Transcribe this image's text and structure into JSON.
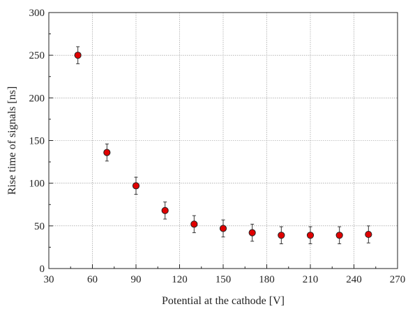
{
  "chart_data": {
    "type": "scatter",
    "xlabel": "Potential at the cathode [V]",
    "ylabel": "Rise time of signals [ns]",
    "xlim": [
      30,
      270
    ],
    "ylim": [
      0,
      300
    ],
    "xticks": [
      30,
      60,
      90,
      120,
      150,
      180,
      210,
      240,
      270
    ],
    "yticks": [
      0,
      50,
      100,
      150,
      200,
      250,
      300
    ],
    "grid": true,
    "legend": "none",
    "marker_color": "#e00000",
    "series": [
      {
        "x": [
          50,
          70,
          90,
          110,
          130,
          150,
          170,
          190,
          210,
          230,
          250
        ],
        "y": [
          250,
          136,
          97,
          68,
          52,
          47,
          42,
          39,
          39,
          39,
          40
        ],
        "err": [
          10,
          10,
          10,
          10,
          10,
          10,
          10,
          10,
          10,
          10,
          10
        ]
      }
    ]
  }
}
